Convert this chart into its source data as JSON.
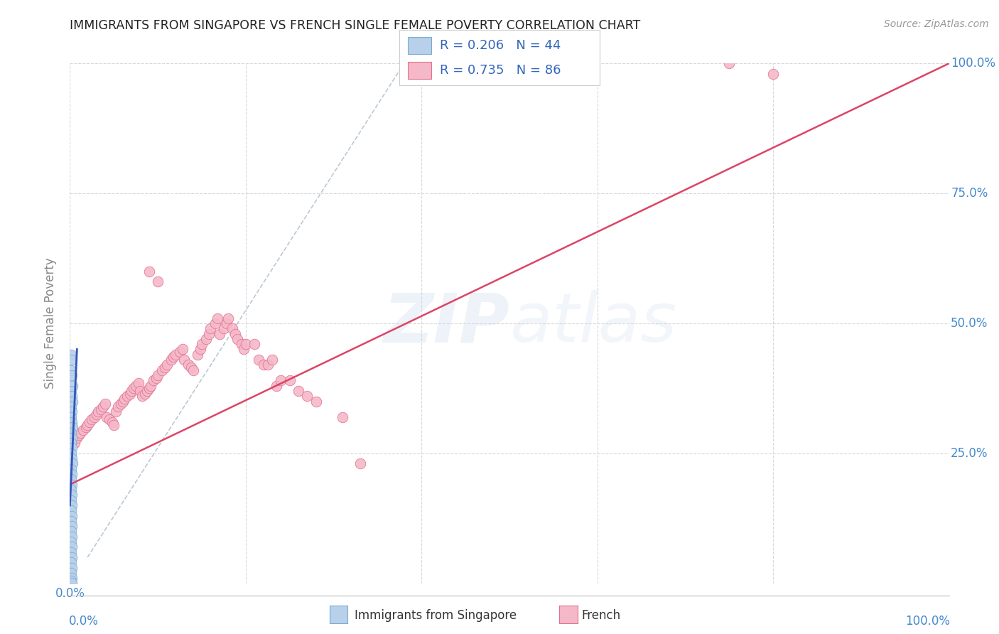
{
  "title": "IMMIGRANTS FROM SINGAPORE VS FRENCH SINGLE FEMALE POVERTY CORRELATION CHART",
  "source": "Source: ZipAtlas.com",
  "ylabel": "Single Female Poverty",
  "xlim": [
    0,
    1.0
  ],
  "ylim": [
    0,
    1.0
  ],
  "ytick_vals": [
    0.0,
    0.25,
    0.5,
    0.75,
    1.0
  ],
  "xtick_vals": [
    0.0,
    0.2,
    0.4,
    0.6,
    0.8,
    1.0
  ],
  "watermark": "ZIPatlas",
  "blue_color": "#b8d0ea",
  "blue_edge": "#7aaad0",
  "pink_color": "#f5b8c8",
  "pink_edge": "#e07090",
  "blue_line_color": "#3355bb",
  "pink_line_color": "#dd4466",
  "dashed_line_color": "#aabbcc",
  "background_color": "#ffffff",
  "grid_color": "#d8d8d8",
  "title_color": "#222222",
  "source_color": "#999999",
  "axis_label_color": "#4488cc",
  "singapore_x": [
    0.001,
    0.002,
    0.001,
    0.002,
    0.003,
    0.001,
    0.002,
    0.003,
    0.001,
    0.002,
    0.001,
    0.002,
    0.003,
    0.001,
    0.002,
    0.001,
    0.002,
    0.001,
    0.002,
    0.003,
    0.001,
    0.002,
    0.001,
    0.002,
    0.001,
    0.002,
    0.001,
    0.002,
    0.001,
    0.002,
    0.001,
    0.002,
    0.001,
    0.002,
    0.001,
    0.002,
    0.001,
    0.002,
    0.001,
    0.002,
    0.001,
    0.002,
    0.001,
    0.002
  ],
  "singapore_y": [
    0.44,
    0.43,
    0.41,
    0.4,
    0.38,
    0.37,
    0.36,
    0.35,
    0.34,
    0.33,
    0.32,
    0.31,
    0.3,
    0.29,
    0.28,
    0.27,
    0.26,
    0.25,
    0.24,
    0.23,
    0.22,
    0.21,
    0.2,
    0.19,
    0.18,
    0.17,
    0.16,
    0.15,
    0.14,
    0.13,
    0.12,
    0.11,
    0.1,
    0.09,
    0.08,
    0.07,
    0.06,
    0.05,
    0.04,
    0.03,
    0.02,
    0.01,
    0.005,
    0.001
  ],
  "french_x": [
    0.005,
    0.008,
    0.01,
    0.012,
    0.015,
    0.018,
    0.02,
    0.022,
    0.025,
    0.028,
    0.03,
    0.032,
    0.035,
    0.038,
    0.04,
    0.042,
    0.045,
    0.048,
    0.05,
    0.052,
    0.055,
    0.058,
    0.06,
    0.062,
    0.065,
    0.068,
    0.07,
    0.072,
    0.075,
    0.078,
    0.08,
    0.082,
    0.085,
    0.088,
    0.09,
    0.092,
    0.095,
    0.098,
    0.1,
    0.105,
    0.108,
    0.11,
    0.115,
    0.118,
    0.12,
    0.125,
    0.128,
    0.13,
    0.135,
    0.138,
    0.14,
    0.145,
    0.148,
    0.15,
    0.155,
    0.158,
    0.16,
    0.165,
    0.168,
    0.17,
    0.175,
    0.178,
    0.18,
    0.185,
    0.188,
    0.19,
    0.195,
    0.198,
    0.2,
    0.21,
    0.215,
    0.22,
    0.225,
    0.23,
    0.235,
    0.24,
    0.25,
    0.26,
    0.27,
    0.28,
    0.31,
    0.33,
    0.75,
    0.8,
    0.09,
    0.1
  ],
  "french_y": [
    0.27,
    0.28,
    0.285,
    0.29,
    0.295,
    0.3,
    0.305,
    0.31,
    0.315,
    0.32,
    0.325,
    0.33,
    0.335,
    0.34,
    0.345,
    0.32,
    0.315,
    0.31,
    0.305,
    0.33,
    0.34,
    0.345,
    0.35,
    0.355,
    0.36,
    0.365,
    0.37,
    0.375,
    0.38,
    0.385,
    0.37,
    0.36,
    0.365,
    0.37,
    0.375,
    0.38,
    0.39,
    0.395,
    0.4,
    0.41,
    0.415,
    0.42,
    0.43,
    0.435,
    0.44,
    0.445,
    0.45,
    0.43,
    0.42,
    0.415,
    0.41,
    0.44,
    0.45,
    0.46,
    0.47,
    0.48,
    0.49,
    0.5,
    0.51,
    0.48,
    0.49,
    0.5,
    0.51,
    0.49,
    0.48,
    0.47,
    0.46,
    0.45,
    0.46,
    0.46,
    0.43,
    0.42,
    0.42,
    0.43,
    0.38,
    0.39,
    0.39,
    0.37,
    0.36,
    0.35,
    0.32,
    0.23,
    1.0,
    0.98,
    0.6,
    0.58
  ]
}
